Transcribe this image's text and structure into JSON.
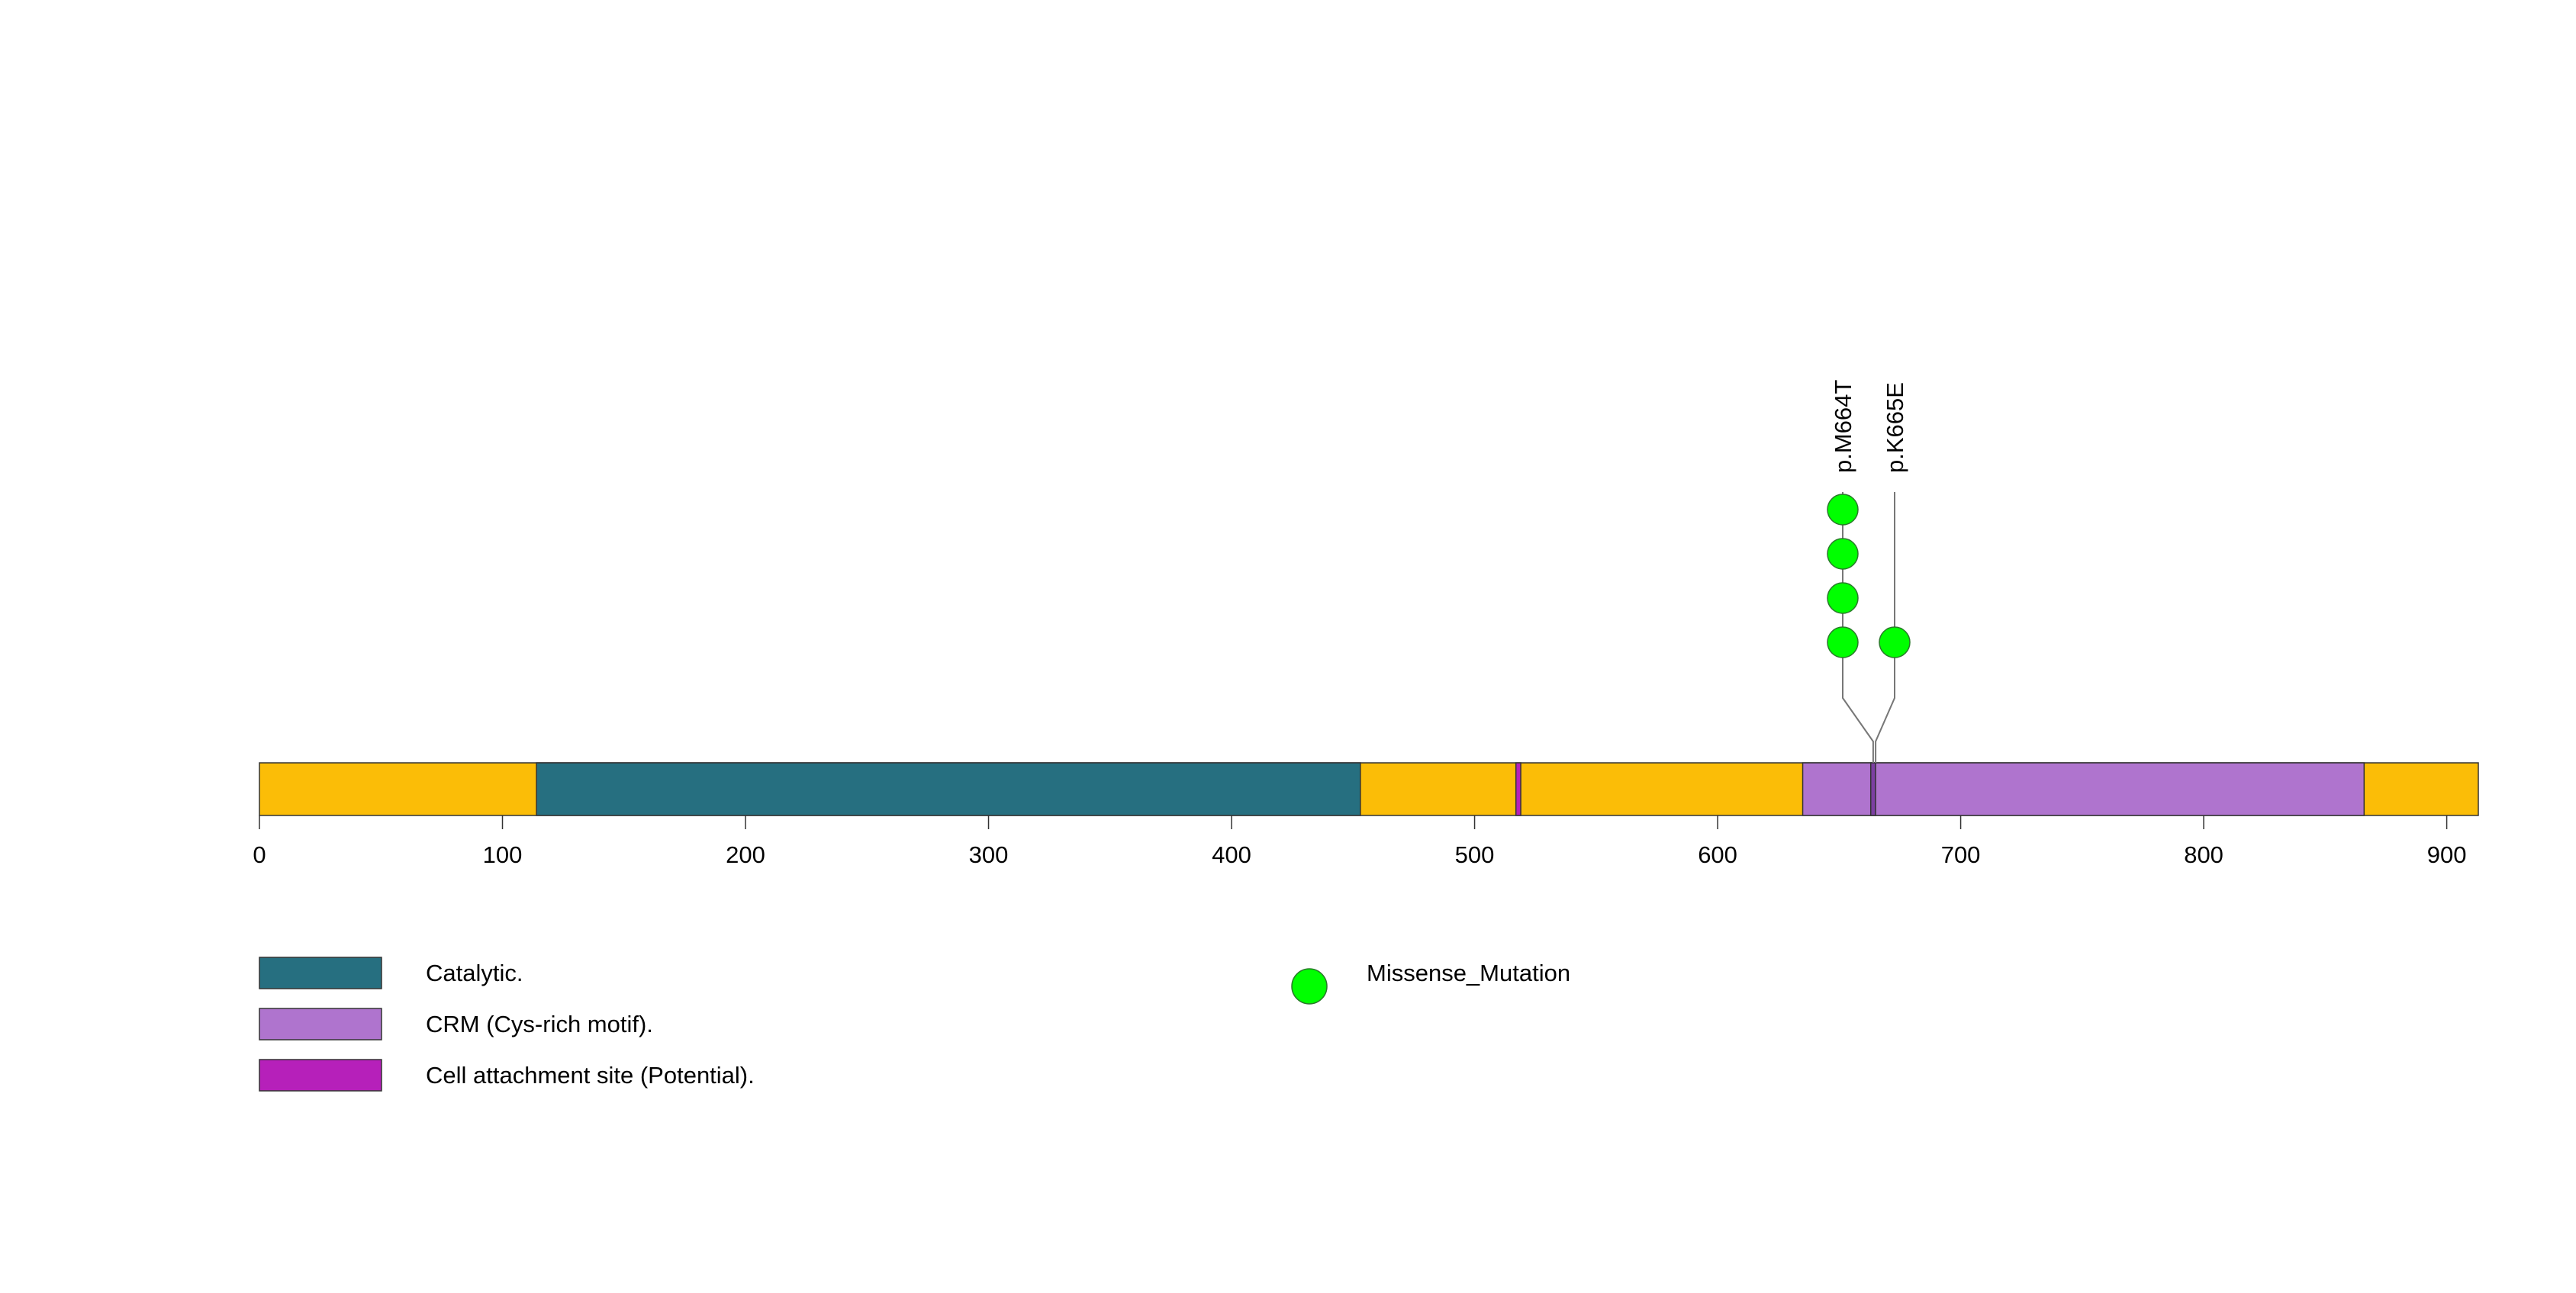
{
  "protein": {
    "length": 913,
    "backbone_color": "#FBBD07",
    "axis": {
      "min": 0,
      "max": 913,
      "ticks": [
        0,
        100,
        200,
        300,
        400,
        500,
        600,
        700,
        800,
        900
      ]
    },
    "domains": [
      {
        "name": "Catalytic.",
        "start": 114,
        "end": 453,
        "color": "#266F80"
      },
      {
        "name": "Cell attachment site (Potential).",
        "start": 517,
        "end": 519,
        "color": "#B620BA"
      },
      {
        "name": "CRM (Cys-rich motif).",
        "start": 635,
        "end": 866,
        "color": "#AF74CE"
      },
      {
        "name": "Cell attachment site (Potential).",
        "start": 663,
        "end": 665,
        "color": "#7C3FA2"
      }
    ]
  },
  "mutations": [
    {
      "label": "p.M664T",
      "position": 664,
      "count": 4,
      "type": "Missense_Mutation",
      "color": "#00FF00"
    },
    {
      "label": "p.K665E",
      "position": 665,
      "count": 1,
      "type": "Missense_Mutation",
      "color": "#00FF00"
    }
  ],
  "legend": {
    "domains": [
      {
        "label": "Catalytic.",
        "color": "#266F80"
      },
      {
        "label": "CRM (Cys-rich motif).",
        "color": "#AF74CE"
      },
      {
        "label": "Cell attachment site (Potential).",
        "color": "#B620BA"
      }
    ],
    "mutation_types": [
      {
        "label": "Missense_Mutation",
        "color": "#00FF00"
      }
    ]
  }
}
